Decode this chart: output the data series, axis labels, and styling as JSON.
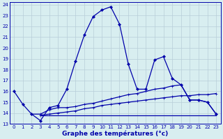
{
  "title": "Graphe des températures (°c)",
  "background_color": "#d8eef0",
  "grid_color": "#b8cdd8",
  "line_color": "#0000aa",
  "xlim": [
    -0.5,
    23.5
  ],
  "ylim": [
    13,
    24.2
  ],
  "xticks": [
    0,
    1,
    2,
    3,
    4,
    5,
    6,
    7,
    8,
    9,
    10,
    11,
    12,
    13,
    14,
    15,
    16,
    17,
    18,
    19,
    20,
    21,
    22,
    23
  ],
  "yticks": [
    13,
    14,
    15,
    16,
    17,
    18,
    19,
    20,
    21,
    22,
    23,
    24
  ],
  "series1_x": [
    0,
    1,
    2,
    3,
    4,
    5,
    6,
    7,
    8,
    9,
    10,
    11,
    12,
    13,
    14,
    15,
    16,
    17,
    18,
    19,
    20,
    21,
    22,
    23
  ],
  "series1_y": [
    16.0,
    14.8,
    13.9,
    13.3,
    14.5,
    14.7,
    16.2,
    18.8,
    21.2,
    22.9,
    23.5,
    23.8,
    22.2,
    18.5,
    16.2,
    16.2,
    18.9,
    19.2,
    17.2,
    16.6,
    15.2,
    15.2,
    15.0,
    13.9
  ],
  "series2_x": [
    2,
    3,
    4,
    5,
    6,
    7,
    8,
    9,
    10,
    11,
    12,
    13,
    14,
    15,
    16,
    17,
    18,
    19,
    20,
    21,
    22,
    23
  ],
  "series2_y": [
    13.9,
    13.9,
    14.3,
    14.5,
    14.5,
    14.6,
    14.8,
    14.9,
    15.1,
    15.3,
    15.5,
    15.7,
    15.8,
    16.0,
    16.2,
    16.3,
    16.5,
    16.6,
    15.2,
    15.2,
    15.0,
    13.9
  ],
  "series3_x": [
    3,
    4,
    5,
    6,
    7,
    8,
    9,
    10,
    11,
    12,
    13,
    14,
    15,
    16,
    17,
    18,
    19,
    20,
    21,
    22,
    23
  ],
  "series3_y": [
    13.8,
    13.9,
    14.0,
    14.1,
    14.2,
    14.4,
    14.5,
    14.7,
    14.8,
    14.9,
    15.0,
    15.1,
    15.2,
    15.3,
    15.4,
    15.5,
    15.6,
    15.6,
    15.7,
    15.7,
    15.8
  ],
  "series4_x": [
    3,
    4,
    22,
    23
  ],
  "series4_y": [
    13.8,
    13.8,
    13.8,
    13.8
  ]
}
